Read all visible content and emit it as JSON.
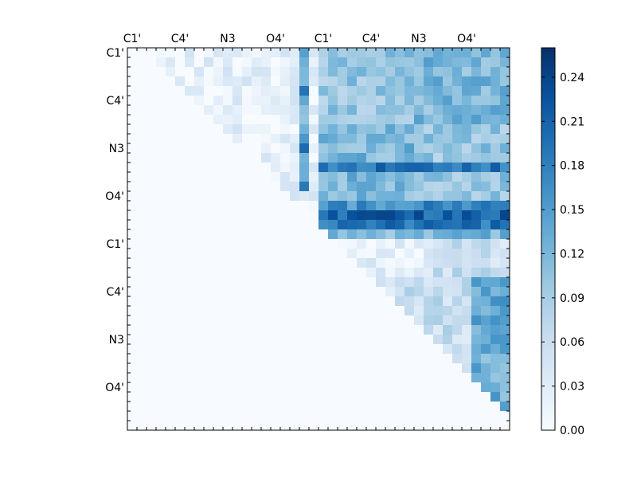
{
  "chart_data": {
    "type": "heatmap",
    "title": "",
    "xlabel": "",
    "ylabel": "",
    "n": 40,
    "x_tick_labels": [
      "C1'",
      "C4'",
      "N3",
      "O4'",
      "C1'",
      "C4'",
      "N3",
      "O4'"
    ],
    "y_tick_labels": [
      "C1'",
      "C4'",
      "N3",
      "O4'",
      "C1'",
      "C4'",
      "N3",
      "O4'"
    ],
    "x_ticks_position": "top",
    "colormap": "Blues",
    "colorbar": {
      "min": 0.0,
      "max": 0.26,
      "tick_labels": [
        "0.00",
        "0.03",
        "0.06",
        "0.09",
        "0.12",
        "0.15",
        "0.18",
        "0.21",
        "0.24"
      ]
    },
    "row_block_means": [
      [
        0.0,
        0.02,
        0.1,
        0.12
      ],
      [
        0.0,
        0.02,
        0.12,
        0.1
      ],
      [
        0.0,
        0.0,
        0.16,
        0.17
      ],
      [
        0.0,
        0.0,
        0.02,
        0.06
      ],
      [
        0.0,
        0.0,
        0.0,
        0.08
      ]
    ],
    "strong_rows": {
      "row_12": 0.19,
      "row_17": 0.21,
      "row_18": 0.19,
      "row_19": 0.12
    },
    "column_19_value": 0.19,
    "colors": {
      "low": "#f7fbff",
      "high": "#08306b"
    }
  }
}
